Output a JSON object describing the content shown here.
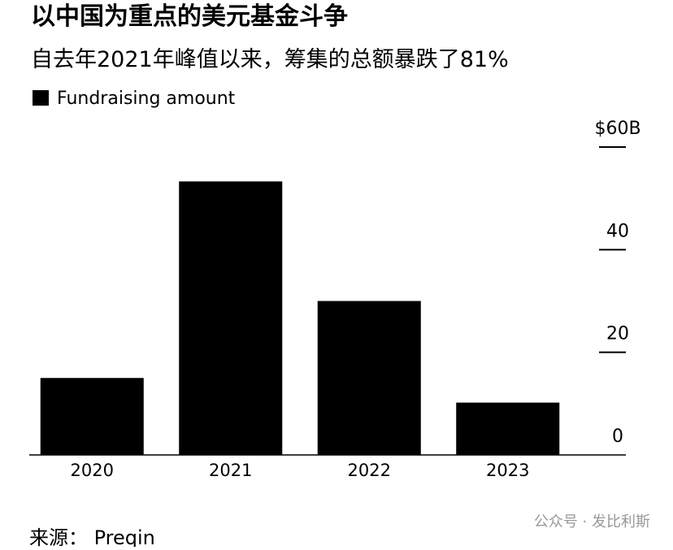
{
  "chart_data": {
    "type": "bar",
    "title": "以中国为重点的美元基金斗争",
    "subtitle": "自去年2021年峰值以来，筹集的总额暴跌了81%",
    "series": [
      {
        "name": "Fundraising amount",
        "color": "#000000",
        "values": [
          15.0,
          53.3,
          30.0,
          10.2
        ]
      }
    ],
    "categories": [
      "2020",
      "2021",
      "2022",
      "2023"
    ],
    "ylim": [
      0,
      60
    ],
    "yticks": [
      0,
      20,
      40,
      {
        "value": 60,
        "label": "$60B"
      }
    ],
    "source": "来源： Preqin",
    "watermark": "公众号 · 发比利斯"
  }
}
